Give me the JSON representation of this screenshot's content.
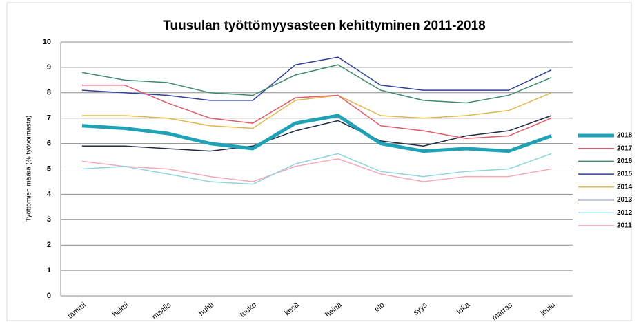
{
  "chart_data": {
    "type": "line",
    "title": "Tuusulan työttömyysasteen kehittyminen 2011-2018",
    "y_label": "Työttömien määrä (% työvoimasta)",
    "categories": [
      "tammi",
      "helmi",
      "maalis",
      "huhti",
      "touko",
      "kesä",
      "heinä",
      "elo",
      "syys",
      "loka",
      "marras",
      "joulu"
    ],
    "ylim": [
      0,
      10
    ],
    "yticks": [
      0,
      1,
      2,
      3,
      4,
      5,
      6,
      7,
      8,
      9,
      10
    ],
    "grid": true,
    "legend": "right",
    "series": [
      {
        "name": "2018",
        "color": "#1fa2b5",
        "values": [
          6.7,
          6.6,
          6.4,
          6.0,
          5.8,
          6.8,
          7.1,
          6.0,
          5.7,
          5.8,
          5.7,
          6.3
        ]
      },
      {
        "name": "2017",
        "color": "#e05a6b",
        "values": [
          8.3,
          8.3,
          7.6,
          7.0,
          6.8,
          7.8,
          7.9,
          6.7,
          6.5,
          6.2,
          6.3,
          7.0
        ]
      },
      {
        "name": "2016",
        "color": "#3d8a6a",
        "values": [
          8.8,
          8.5,
          8.4,
          8.0,
          7.9,
          8.7,
          9.1,
          8.1,
          7.7,
          7.6,
          7.9,
          8.6
        ]
      },
      {
        "name": "2015",
        "color": "#2e3f9a",
        "values": [
          8.1,
          8.0,
          7.9,
          7.7,
          7.7,
          9.1,
          9.4,
          8.3,
          8.1,
          8.1,
          8.1,
          8.9
        ]
      },
      {
        "name": "2014",
        "color": "#e0b84a",
        "values": [
          7.1,
          7.1,
          7.0,
          6.7,
          6.6,
          7.7,
          7.9,
          7.1,
          7.0,
          7.1,
          7.3,
          8.0
        ]
      },
      {
        "name": "2013",
        "color": "#1f2a44",
        "values": [
          5.9,
          5.9,
          5.8,
          5.7,
          5.9,
          6.5,
          6.9,
          6.1,
          5.9,
          6.3,
          6.5,
          7.1
        ]
      },
      {
        "name": "2012",
        "color": "#8fd3e0",
        "values": [
          5.0,
          5.1,
          4.8,
          4.5,
          4.4,
          5.2,
          5.6,
          4.9,
          4.7,
          4.9,
          5.0,
          5.6
        ]
      },
      {
        "name": "2011",
        "color": "#f4a8b8",
        "values": [
          5.3,
          5.1,
          5.0,
          4.7,
          4.5,
          5.1,
          5.4,
          4.8,
          4.5,
          4.7,
          4.7,
          5.0
        ]
      }
    ]
  }
}
